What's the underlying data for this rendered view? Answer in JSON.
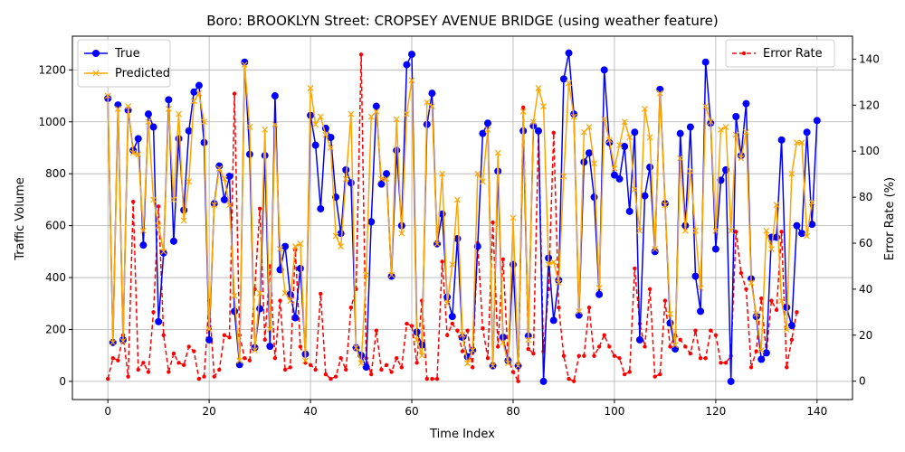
{
  "chart_data": {
    "type": "line",
    "title": "Boro: BROOKLYN Street: CROPSEY AVENUE BRIDGE (using weather feature)",
    "xlabel": "Time Index",
    "ylabel_left": "Traffic Volume",
    "ylabel_right": "Error Rate (%)",
    "xlim": [
      -7,
      147
    ],
    "ylim_left": [
      -70,
      1330
    ],
    "ylim_right": [
      -8,
      150
    ],
    "x_ticks": [
      0,
      20,
      40,
      60,
      80,
      100,
      120,
      140
    ],
    "y_ticks_left": [
      0,
      200,
      400,
      600,
      800,
      1000,
      1200
    ],
    "y_ticks_right": [
      0,
      20,
      40,
      60,
      80,
      100,
      120,
      140
    ],
    "grid": true,
    "legend_left": "top-left",
    "legend_right": "top-right",
    "series": [
      {
        "name": "True",
        "color": "#0000ff",
        "axis": "left",
        "marker": "circle",
        "values": [
          1090,
          150,
          1065,
          160,
          1045,
          890,
          935,
          525,
          1030,
          980,
          230,
          495,
          1085,
          540,
          935,
          660,
          965,
          1115,
          1140,
          920,
          160,
          685,
          830,
          700,
          790,
          270,
          65,
          1230,
          875,
          130,
          280,
          870,
          135,
          1100,
          430,
          520,
          335,
          245,
          435,
          105,
          1025,
          910,
          665,
          975,
          940,
          710,
          570,
          815,
          765,
          130,
          100,
          55,
          615,
          1060,
          760,
          800,
          405,
          890,
          600,
          1220,
          1260,
          190,
          140,
          990,
          1110,
          530,
          645,
          325,
          250,
          550,
          170,
          95,
          120,
          520,
          955,
          995,
          60,
          810,
          170,
          80,
          450,
          60,
          965,
          175,
          985,
          965,
          0,
          475,
          235,
          390,
          1165,
          1265,
          1030,
          255,
          845,
          880,
          710,
          335,
          1200,
          920,
          795,
          780,
          905,
          655,
          960,
          160,
          715,
          825,
          500,
          1125,
          685,
          225,
          125,
          955,
          600,
          980,
          405,
          270,
          1230,
          995,
          510,
          775,
          815,
          0,
          1020,
          870,
          1070,
          395,
          250,
          85,
          110,
          555,
          555,
          930,
          285,
          215,
          600,
          570,
          960,
          605,
          1005
        ]
      },
      {
        "name": "Predicted",
        "color": "#ffa500",
        "axis": "left",
        "marker": "x",
        "values": [
          1100,
          150,
          1050,
          155,
          1060,
          880,
          875,
          580,
          1000,
          700,
          600,
          500,
          1050,
          700,
          1030,
          620,
          770,
          1080,
          1110,
          1000,
          200,
          680,
          820,
          780,
          680,
          330,
          80,
          1220,
          980,
          120,
          340,
          970,
          200,
          990,
          510,
          340,
          310,
          520,
          530,
          80,
          1130,
          990,
          1020,
          950,
          900,
          560,
          520,
          780,
          1030,
          130,
          70,
          410,
          1020,
          1040,
          780,
          780,
          410,
          1010,
          570,
          1030,
          1160,
          160,
          100,
          1075,
          1060,
          530,
          800,
          300,
          450,
          700,
          180,
          70,
          120,
          800,
          770,
          970,
          60,
          880,
          150,
          70,
          630,
          60,
          1040,
          160,
          1000,
          1130,
          1060,
          450,
          460,
          380,
          790,
          1150,
          1020,
          270,
          960,
          980,
          840,
          360,
          1010,
          930,
          820,
          910,
          1000,
          940,
          740,
          580,
          1050,
          940,
          510,
          1110,
          680,
          260,
          140,
          860,
          580,
          810,
          580,
          360,
          1060,
          1000,
          580,
          970,
          980,
          580,
          950,
          860,
          960,
          380,
          260,
          120,
          580,
          510,
          680,
          310,
          200,
          800,
          920,
          920,
          560,
          690
        ]
      },
      {
        "name": "Error Rate",
        "color": "#ff0000",
        "axis": "right",
        "marker": "dot",
        "linestyle": "dashed",
        "values": [
          1,
          10,
          9,
          20,
          2,
          78,
          5,
          8,
          4,
          30,
          76,
          20,
          4,
          12,
          8,
          7,
          15,
          13,
          1,
          2,
          35,
          2,
          5,
          20,
          19,
          125,
          20,
          10,
          9,
          40,
          75,
          18,
          50,
          10,
          35,
          5,
          6,
          57,
          15,
          8,
          7,
          5,
          38,
          3,
          1,
          2,
          10,
          5,
          32,
          40,
          142,
          10,
          3,
          22,
          5,
          7,
          4,
          10,
          6,
          25,
          24,
          8,
          35,
          1,
          1,
          1,
          52,
          20,
          25,
          22,
          13,
          22,
          6,
          60,
          23,
          10,
          69,
          15,
          53,
          10,
          4,
          0,
          119,
          14,
          12,
          108,
          13,
          40,
          108,
          32,
          11,
          1,
          0,
          11,
          11,
          32,
          11,
          15,
          20,
          15,
          11,
          10,
          3,
          4,
          49,
          25,
          15,
          40,
          2,
          3,
          35,
          15,
          20,
          18,
          15,
          12,
          22,
          10,
          10,
          22,
          20,
          8,
          8,
          11,
          65,
          47,
          40,
          6,
          13,
          36,
          12,
          35,
          31,
          65,
          6,
          18,
          30
        ]
      }
    ]
  }
}
